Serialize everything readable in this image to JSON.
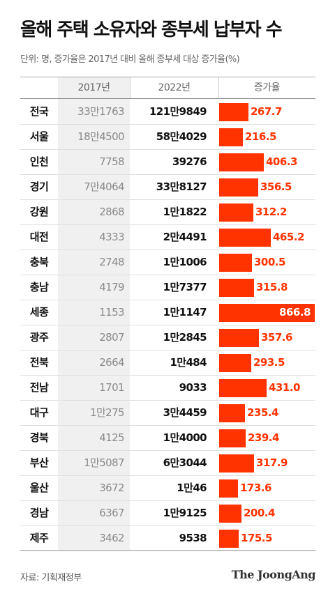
{
  "title": "올해 주택 소유자와 종부세 납부자 수",
  "subtitle": "단위: 명, 증가율은 2017년 대비 올해 종부세 대상 증가율(%)",
  "headers": {
    "col_2017": "2017년",
    "col_2022": "2022년",
    "col_growth": "증가율"
  },
  "source": "자료: 기획재정부",
  "brand": "The JoongAng",
  "colors": {
    "bar": "#ff3300",
    "gray_column": "#f0f0f0"
  },
  "chart_data": {
    "type": "bar",
    "title": "올해 주택 소유자와 종부세 납부자 수",
    "categories": [
      "전국",
      "서울",
      "인천",
      "경기",
      "강원",
      "대전",
      "충북",
      "충남",
      "세종",
      "광주",
      "전북",
      "전남",
      "대구",
      "경북",
      "부산",
      "울산",
      "경남",
      "제주"
    ],
    "values_2017": [
      "33만1763",
      "18만4500",
      "7758",
      "7만4064",
      "2868",
      "4333",
      "2748",
      "4179",
      "1153",
      "2807",
      "2664",
      "1701",
      "1만275",
      "4125",
      "1만5087",
      "3672",
      "6367",
      "3462"
    ],
    "values_2022": [
      "121만9849",
      "58만4029",
      "39276",
      "33만8127",
      "1만1822",
      "2만4491",
      "1만1006",
      "1만7377",
      "1만1147",
      "1만2845",
      "1만484",
      "9033",
      "3만4459",
      "1만4000",
      "6만3044",
      "1만46",
      "1만9125",
      "9538"
    ],
    "growth_labels": [
      "267.7",
      "216.5",
      "406.3",
      "356.5",
      "312.2",
      "465.2",
      "300.5",
      "315.8",
      "866.8",
      "357.6",
      "293.5",
      "431.0",
      "235.4",
      "239.4",
      "317.9",
      "173.6",
      "200.4",
      "175.5"
    ],
    "growth": [
      267.7,
      216.5,
      406.3,
      356.5,
      312.2,
      465.2,
      300.5,
      315.8,
      866.8,
      357.6,
      293.5,
      431.0,
      235.4,
      239.4,
      317.9,
      173.6,
      200.4,
      175.5
    ],
    "xlim": [
      0,
      866.8
    ]
  }
}
